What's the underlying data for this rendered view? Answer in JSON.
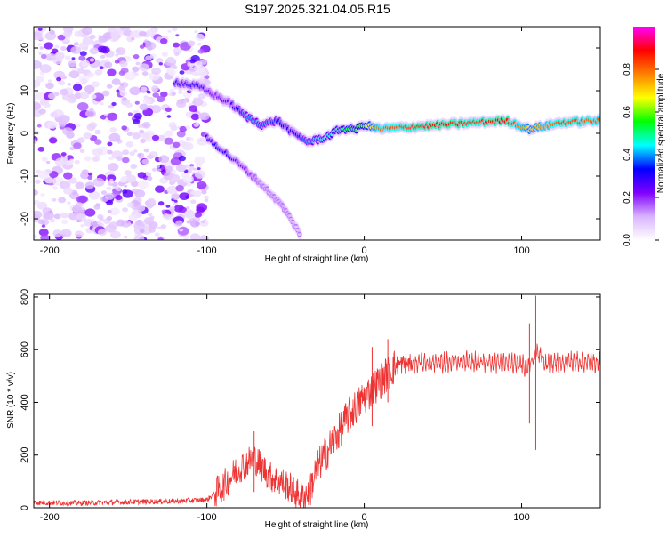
{
  "figure_title": "S197.2025.321.04.05.R15",
  "chart_data": [
    {
      "type": "heatmap",
      "title": "S197.2025.321.04.05.R15",
      "xlabel": "Height of straight line (km)",
      "ylabel": "Frequency (Hz)",
      "xlim": [
        -210,
        150
      ],
      "ylim": [
        -25,
        25
      ],
      "xticks": [
        -200,
        -100,
        0,
        100
      ],
      "yticks": [
        -20,
        -10,
        0,
        10,
        20
      ],
      "colorbar": {
        "label": "Normalized spectral amplitude",
        "range": [
          0,
          1
        ],
        "ticks": [
          "0.0",
          "0.2",
          "0.4",
          "0.6",
          "0.8"
        ],
        "tick_values": [
          0.0,
          0.2,
          0.4,
          0.6,
          0.8
        ],
        "colors": [
          "#ffffff",
          "#d9b3ff",
          "#7f00ff",
          "#0000ff",
          "#00ffff",
          "#00ff00",
          "#ffff00",
          "#ff8000",
          "#ff0000",
          "#ff00ff"
        ]
      },
      "ridge": [
        {
          "x": -120,
          "freq": 12,
          "amp": 0.3
        },
        {
          "x": -105,
          "freq": 11,
          "amp": 0.3
        },
        {
          "x": -95,
          "freq": 9,
          "amp": 0.2
        },
        {
          "x": -85,
          "freq": 7,
          "amp": 0.25
        },
        {
          "x": -75,
          "freq": 4,
          "amp": 0.4
        },
        {
          "x": -65,
          "freq": 2,
          "amp": 0.4
        },
        {
          "x": -55,
          "freq": 3,
          "amp": 0.35
        },
        {
          "x": -45,
          "freq": 0,
          "amp": 0.3
        },
        {
          "x": -35,
          "freq": -2,
          "amp": 0.4
        },
        {
          "x": -25,
          "freq": -1,
          "amp": 0.45
        },
        {
          "x": -15,
          "freq": 1,
          "amp": 0.5
        },
        {
          "x": -5,
          "freq": 1,
          "amp": 0.55
        },
        {
          "x": 0,
          "freq": 2,
          "amp": 0.6
        },
        {
          "x": 10,
          "freq": 1,
          "amp": 0.8
        },
        {
          "x": 30,
          "freq": 1.5,
          "amp": 0.85
        },
        {
          "x": 50,
          "freq": 2,
          "amp": 0.9
        },
        {
          "x": 70,
          "freq": 2.5,
          "amp": 0.85
        },
        {
          "x": 90,
          "freq": 3,
          "amp": 0.9
        },
        {
          "x": 105,
          "freq": 1,
          "amp": 0.7
        },
        {
          "x": 125,
          "freq": 2.5,
          "amp": 0.85
        },
        {
          "x": 150,
          "freq": 3,
          "amp": 0.8
        }
      ],
      "secondary_branch": [
        {
          "x": -100,
          "freq": -1,
          "amp": 0.3
        },
        {
          "x": -90,
          "freq": -4,
          "amp": 0.35
        },
        {
          "x": -80,
          "freq": -7,
          "amp": 0.25
        },
        {
          "x": -65,
          "freq": -12,
          "amp": 0.12
        },
        {
          "x": -52,
          "freq": -17,
          "amp": 0.12
        },
        {
          "x": -40,
          "freq": -24,
          "amp": 0.08
        }
      ],
      "noise_region": {
        "x_from": -210,
        "x_to": -100,
        "amp": 0.12
      }
    },
    {
      "type": "line",
      "xlabel": "Height of straight line (km)",
      "ylabel": "SNR (10 * v/v)",
      "xlim": [
        -210,
        150
      ],
      "ylim": [
        0,
        810
      ],
      "xticks": [
        -200,
        -100,
        0,
        100
      ],
      "yticks": [
        0,
        200,
        400,
        600,
        800
      ],
      "color": "#ee3333",
      "series": [
        {
          "name": "SNR",
          "x": [
            -210,
            -180,
            -150,
            -120,
            -100,
            -90,
            -80,
            -70,
            -60,
            -50,
            -40,
            -35,
            -30,
            -20,
            -10,
            0,
            10,
            20,
            30,
            50,
            70,
            90,
            105,
            110,
            115,
            130,
            150
          ],
          "values": [
            20,
            18,
            22,
            25,
            30,
            80,
            150,
            190,
            120,
            90,
            40,
            60,
            150,
            250,
            350,
            420,
            480,
            540,
            550,
            550,
            555,
            550,
            540,
            590,
            540,
            560,
            550
          ]
        }
      ],
      "spikes": [
        {
          "x": 109,
          "min": 220,
          "max": 805
        },
        {
          "x": 105,
          "min": 320,
          "max": 700
        },
        {
          "x": -70,
          "min": 60,
          "max": 290
        },
        {
          "x": 5,
          "min": 310,
          "max": 610
        },
        {
          "x": 15,
          "min": 400,
          "max": 640
        }
      ]
    }
  ]
}
